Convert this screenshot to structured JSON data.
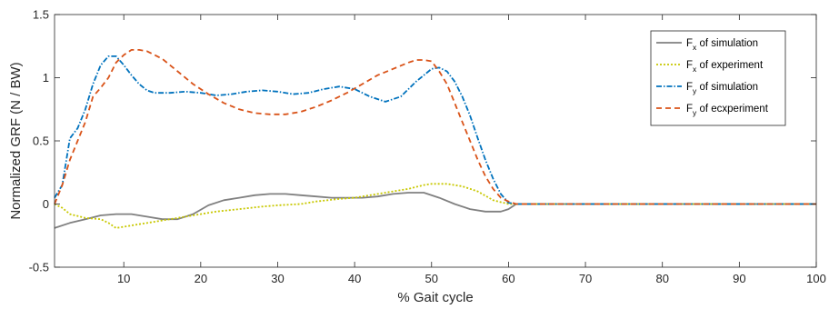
{
  "chart_data": {
    "type": "line",
    "title": "",
    "xlabel": "% Gait cycle",
    "ylabel": "Normalized GRF (N / BW)",
    "xlim": [
      1,
      100
    ],
    "ylim": [
      -0.5,
      1.5
    ],
    "xticks": [
      10,
      20,
      30,
      40,
      50,
      60,
      70,
      80,
      90,
      100
    ],
    "yticks": [
      -0.5,
      0,
      0.5,
      1,
      1.5
    ],
    "xtick_labels": [
      "10",
      "20",
      "30",
      "40",
      "50",
      "60",
      "70",
      "80",
      "90",
      "100"
    ],
    "ytick_labels": [
      "-0.5",
      "0",
      "0.5",
      "1",
      "1.5"
    ],
    "grid": false,
    "legend_position": "top-right",
    "series": [
      {
        "name_main": "F",
        "name_sub": "x",
        "name_rest": " of simulation",
        "color": "#808080",
        "dash": "solid",
        "x": [
          1,
          3,
          5,
          7,
          9,
          11,
          13,
          15,
          17,
          19,
          21,
          23,
          25,
          27,
          29,
          31,
          33,
          35,
          37,
          39,
          41,
          43,
          45,
          47,
          49,
          51,
          53,
          55,
          57,
          59,
          60,
          61,
          65,
          70,
          80,
          90,
          100
        ],
        "y": [
          -0.19,
          -0.15,
          -0.12,
          -0.09,
          -0.08,
          -0.08,
          -0.1,
          -0.12,
          -0.12,
          -0.08,
          -0.01,
          0.03,
          0.05,
          0.07,
          0.08,
          0.08,
          0.07,
          0.06,
          0.05,
          0.05,
          0.05,
          0.06,
          0.08,
          0.09,
          0.09,
          0.05,
          0.0,
          -0.04,
          -0.06,
          -0.06,
          -0.04,
          0.0,
          0.0,
          0.0,
          0.0,
          0.0,
          0.0
        ]
      },
      {
        "name_main": "F",
        "name_sub": "x",
        "name_rest": " of experiment",
        "color": "#c8c800",
        "dash": "dot",
        "x": [
          1,
          2,
          3,
          5,
          7,
          8,
          9,
          10,
          12,
          14,
          16,
          18,
          20,
          22,
          25,
          28,
          30,
          33,
          35,
          38,
          40,
          43,
          45,
          47,
          49,
          50,
          52,
          54,
          56,
          58,
          60,
          61,
          65,
          70,
          80,
          90,
          100
        ],
        "y": [
          0.0,
          -0.03,
          -0.08,
          -0.11,
          -0.12,
          -0.15,
          -0.19,
          -0.18,
          -0.16,
          -0.14,
          -0.12,
          -0.1,
          -0.08,
          -0.06,
          -0.04,
          -0.02,
          -0.01,
          0.0,
          0.02,
          0.04,
          0.05,
          0.08,
          0.1,
          0.12,
          0.15,
          0.16,
          0.16,
          0.14,
          0.1,
          0.03,
          0.0,
          0.0,
          0.0,
          0.0,
          0.0,
          0.0,
          0.0
        ]
      },
      {
        "name_main": "F",
        "name_sub": "y",
        "name_rest": " of simulation",
        "color": "#0072bd",
        "dash": "dashdot",
        "x": [
          1,
          2,
          3,
          4,
          5,
          6,
          7,
          8,
          9,
          10,
          11,
          12,
          13,
          14,
          16,
          18,
          20,
          22,
          24,
          26,
          28,
          30,
          32,
          34,
          36,
          38,
          40,
          42,
          44,
          46,
          48,
          50,
          51,
          52,
          53,
          54,
          55,
          56,
          57,
          58,
          59,
          60,
          61,
          65,
          70,
          80,
          90,
          100
        ],
        "y": [
          0.05,
          0.15,
          0.52,
          0.6,
          0.75,
          0.95,
          1.1,
          1.17,
          1.17,
          1.1,
          1.02,
          0.95,
          0.9,
          0.88,
          0.88,
          0.89,
          0.88,
          0.86,
          0.87,
          0.89,
          0.9,
          0.89,
          0.87,
          0.88,
          0.91,
          0.93,
          0.91,
          0.85,
          0.81,
          0.85,
          0.97,
          1.07,
          1.08,
          1.05,
          0.97,
          0.85,
          0.7,
          0.52,
          0.35,
          0.2,
          0.08,
          0.01,
          0.0,
          0.0,
          0.0,
          0.0,
          0.0,
          0.0
        ]
      },
      {
        "name_main": "F",
        "name_sub": "y",
        "name_rest": " of ecxperiment",
        "color": "#d95319",
        "dash": "dash",
        "x": [
          1,
          2,
          3,
          4,
          5,
          6,
          7,
          8,
          9,
          10,
          11,
          12,
          13,
          15,
          17,
          19,
          21,
          23,
          25,
          27,
          29,
          31,
          33,
          35,
          37,
          39,
          41,
          43,
          45,
          47,
          48,
          49,
          50,
          51,
          52,
          53,
          54,
          55,
          56,
          57,
          58,
          59,
          60,
          61,
          65,
          70,
          80,
          90,
          100
        ],
        "y": [
          0.0,
          0.15,
          0.35,
          0.5,
          0.65,
          0.85,
          0.92,
          1.0,
          1.12,
          1.18,
          1.22,
          1.22,
          1.21,
          1.15,
          1.05,
          0.95,
          0.87,
          0.8,
          0.75,
          0.72,
          0.71,
          0.71,
          0.73,
          0.77,
          0.82,
          0.88,
          0.95,
          1.02,
          1.07,
          1.12,
          1.14,
          1.14,
          1.13,
          1.05,
          0.95,
          0.8,
          0.65,
          0.5,
          0.35,
          0.22,
          0.12,
          0.05,
          0.02,
          0.0,
          0.0,
          0.0,
          0.0,
          0.0,
          0.0
        ]
      }
    ]
  }
}
